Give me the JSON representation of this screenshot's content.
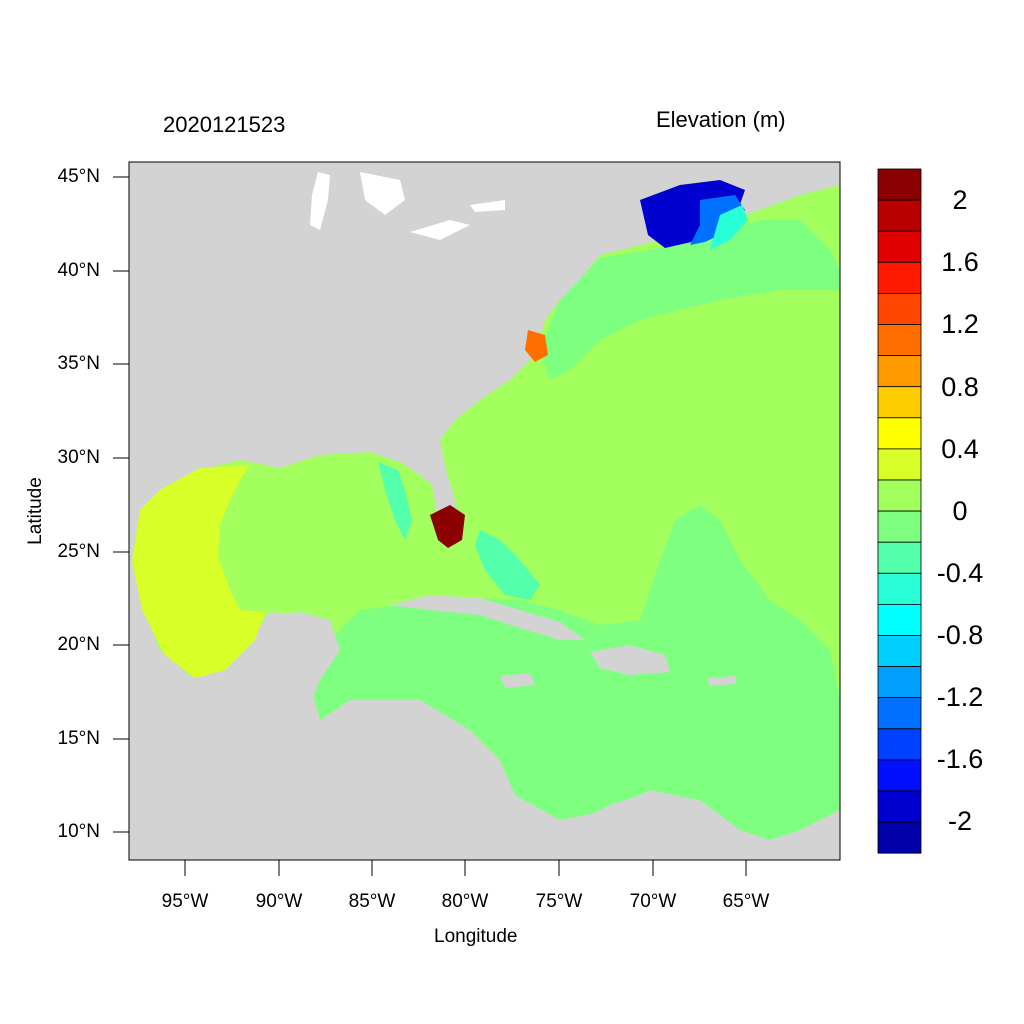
{
  "header": {
    "timestamp": "2020121523",
    "variable_title": "Elevation (m)"
  },
  "axes": {
    "xlabel": "Longitude",
    "ylabel": "Latitude",
    "lat_ticks": [
      "45°N",
      "40°N",
      "35°N",
      "30°N",
      "25°N",
      "20°N",
      "15°N",
      "10°N"
    ],
    "lon_ticks": [
      "95°W",
      "90°W",
      "85°W",
      "80°W",
      "75°W",
      "70°W",
      "65°W"
    ]
  },
  "map": {
    "region": "US East Coast, Gulf of Mexico and Caribbean",
    "land_color": "#d3d3d3",
    "lon_range": [
      -98.2,
      -60.2
    ],
    "lat_range": [
      8.5,
      46
    ]
  },
  "colorbar": {
    "labels": [
      "2",
      "1.6",
      "1.2",
      "0.8",
      "0.4",
      "0",
      "-0.4",
      "-0.8",
      "-1.2",
      "-1.6",
      "-2"
    ],
    "colors": [
      "#8b0000",
      "#b80000",
      "#e00000",
      "#ff1a00",
      "#ff4500",
      "#ff6f00",
      "#ff9a00",
      "#ffcd00",
      "#ffff00",
      "#d9ff28",
      "#a2ff5e",
      "#7fff80",
      "#53ffab",
      "#28ffd6",
      "#00ffff",
      "#00cfff",
      "#009fff",
      "#0070ff",
      "#0040ff",
      "#0010ff",
      "#0000d0",
      "#0000a8"
    ]
  }
}
